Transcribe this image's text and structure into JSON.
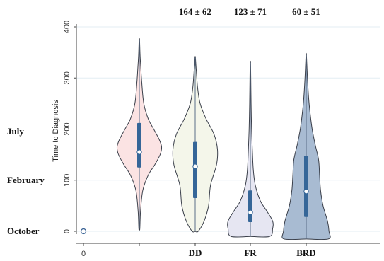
{
  "chart_data": {
    "type": "violin",
    "ylabel": "Time to Diagnosis",
    "ylim": [
      0,
      400
    ],
    "yticks": [
      0,
      100,
      200,
      300,
      400
    ],
    "grid": true,
    "month_labels": [
      {
        "label": "July",
        "value": 195
      },
      {
        "label": "February",
        "value": 100
      },
      {
        "label": "October",
        "value": 0
      }
    ],
    "categories": [
      "0",
      "",
      "DD",
      "FR",
      "BRD"
    ],
    "series": [
      {
        "category": "0",
        "point_only": true,
        "median": 0,
        "color": "#dbe9f6",
        "edge": "#3b6496"
      },
      {
        "category": "",
        "color": "#fbe3e3",
        "min": 5,
        "max": 375,
        "q1": 125,
        "q3": 212,
        "median": 155,
        "density": [
          [
            5,
            0.02
          ],
          [
            40,
            0.05
          ],
          [
            80,
            0.14
          ],
          [
            110,
            0.36
          ],
          [
            130,
            0.62
          ],
          [
            150,
            0.84
          ],
          [
            165,
            0.9
          ],
          [
            180,
            0.8
          ],
          [
            200,
            0.58
          ],
          [
            220,
            0.36
          ],
          [
            250,
            0.18
          ],
          [
            290,
            0.1
          ],
          [
            320,
            0.06
          ],
          [
            345,
            0.03
          ],
          [
            375,
            0.01
          ]
        ]
      },
      {
        "category": "DD",
        "label_top": "164 ± 62",
        "color": "#f4f6ea",
        "min": 0,
        "max": 340,
        "q1": 65,
        "q3": 175,
        "median": 127,
        "density": [
          [
            0,
            0.12
          ],
          [
            20,
            0.36
          ],
          [
            50,
            0.54
          ],
          [
            90,
            0.62
          ],
          [
            130,
            0.86
          ],
          [
            160,
            0.9
          ],
          [
            190,
            0.76
          ],
          [
            220,
            0.44
          ],
          [
            250,
            0.2
          ],
          [
            280,
            0.1
          ],
          [
            310,
            0.05
          ],
          [
            340,
            0.01
          ]
        ]
      },
      {
        "category": "FR",
        "label_top": "123 ± 71",
        "color": "#e6e6f2",
        "min": -10,
        "max": 330,
        "q1": 18,
        "q3": 80,
        "median": 37,
        "density": [
          [
            -10,
            0.78
          ],
          [
            5,
            0.9
          ],
          [
            20,
            0.9
          ],
          [
            40,
            0.66
          ],
          [
            60,
            0.4
          ],
          [
            90,
            0.2
          ],
          [
            120,
            0.12
          ],
          [
            160,
            0.08
          ],
          [
            200,
            0.05
          ],
          [
            250,
            0.03
          ],
          [
            290,
            0.02
          ],
          [
            330,
            0.01
          ]
        ]
      },
      {
        "category": "BRD",
        "label_top": "60 ± 51",
        "color": "#a8bbd2",
        "min": -15,
        "max": 345,
        "q1": 28,
        "q3": 148,
        "median": 78,
        "density": [
          [
            -15,
            0.9
          ],
          [
            0,
            0.92
          ],
          [
            20,
            0.86
          ],
          [
            50,
            0.68
          ],
          [
            80,
            0.58
          ],
          [
            110,
            0.54
          ],
          [
            140,
            0.5
          ],
          [
            170,
            0.36
          ],
          [
            200,
            0.24
          ],
          [
            230,
            0.16
          ],
          [
            260,
            0.1
          ],
          [
            300,
            0.05
          ],
          [
            345,
            0.01
          ]
        ]
      }
    ]
  }
}
